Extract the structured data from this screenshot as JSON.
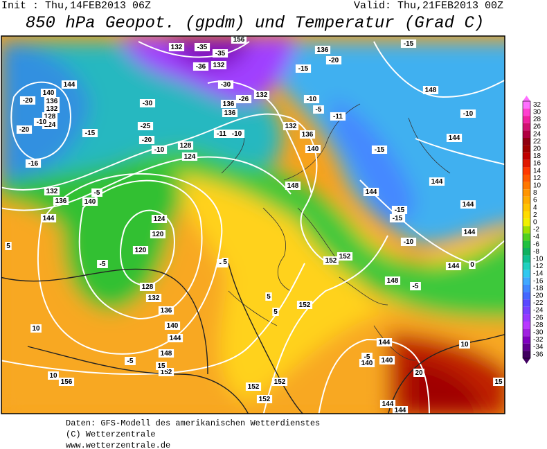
{
  "header": {
    "init": "Init : Thu,14FEB2013 06Z",
    "valid": "Valid: Thu,21FEB2013 00Z",
    "title": "850 hPa Geopot. (gpdm) und Temperatur (Grad C)"
  },
  "legend": {
    "values": [
      32,
      30,
      28,
      26,
      24,
      22,
      20,
      18,
      16,
      14,
      12,
      10,
      8,
      6,
      4,
      2,
      0,
      -2,
      -4,
      -6,
      -8,
      -10,
      -12,
      -14,
      -16,
      -18,
      -20,
      -22,
      -24,
      -26,
      -28,
      -30,
      -32,
      -34,
      -36
    ],
    "colors": [
      "#ff70ff",
      "#ff40d0",
      "#f020a0",
      "#d01070",
      "#b00040",
      "#900010",
      "#a00000",
      "#c00000",
      "#e01800",
      "#ff3800",
      "#ff5800",
      "#ff7800",
      "#ff9400",
      "#ffac00",
      "#ffc400",
      "#ffdc00",
      "#f0f000",
      "#a0e000",
      "#50d020",
      "#20c040",
      "#10b060",
      "#10c090",
      "#20d0c0",
      "#30c8f0",
      "#40a8ff",
      "#4088ff",
      "#4468ff",
      "#5a48ff",
      "#7840ff",
      "#9838ff",
      "#b838ff",
      "#a020e0",
      "#8000c0",
      "#600090",
      "#400060"
    ]
  },
  "map": {
    "labels": [
      "144",
      "140",
      "136",
      "132",
      "128",
      "124",
      "-20",
      "-10",
      "-20",
      "-15",
      "-16",
      "132",
      "136",
      "140",
      "144",
      "-5",
      "124",
      "120",
      "120",
      "128",
      "132",
      "136",
      "140",
      "144",
      "148",
      "152",
      "156",
      "10",
      "10",
      "-5",
      "15",
      "132",
      "-35",
      "-35",
      "-36",
      "132",
      "156",
      "136",
      "-15",
      "-15",
      "-20",
      "148",
      "-30",
      "-25",
      "-10",
      "-5",
      "-11",
      "132",
      "136",
      "-15",
      "140",
      "148",
      "144",
      "144",
      "-15",
      "-15",
      "-10",
      "144",
      "144",
      "-10",
      "144",
      "144",
      "0",
      "148",
      "-5",
      "152",
      "152",
      "152",
      "5",
      "5",
      "-5",
      "152",
      "152",
      "152",
      "-5",
      "140",
      "140",
      "144",
      "20",
      "10",
      "15",
      "144",
      "144",
      "5",
      "-5",
      "132",
      "-30",
      "136",
      "-26",
      "136",
      "-11",
      "-10",
      "128",
      "124",
      "-20",
      "-10",
      "5"
    ]
  },
  "footer": {
    "line1": "Daten: GFS-Modell des amerikanischen Wetterdienstes",
    "line2": "(C) Wetterzentrale",
    "line3": "www.wetterzentrale.de"
  }
}
